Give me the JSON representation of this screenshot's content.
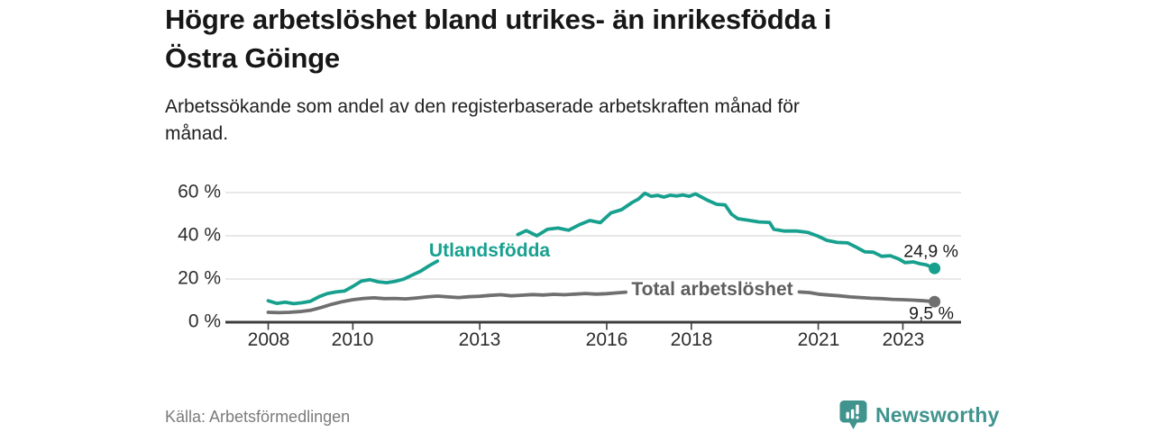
{
  "header": {
    "title_line1": "Högre arbetslöshet bland utrikes- än inrikesfödda i",
    "title_line2": "Östra Göinge",
    "subtitle_line1": "Arbetssökande som andel av den registerbaserade arbetskraften månad för",
    "subtitle_line2": "månad."
  },
  "footer": {
    "source": "Källa: Arbetsförmedlingen",
    "brand": "Newsworthy"
  },
  "colors": {
    "teal": "#18a08f",
    "gray": "#6f6f6f",
    "gray_label": "#5e5e5e",
    "grid": "#d9d9d9",
    "axis": "#3d3d3d",
    "brand_teal": "#40948d",
    "value_label": "#1a1a1a",
    "source_text": "#7b7b7b"
  },
  "chart_data": {
    "type": "line",
    "title": "Högre arbetslöshet bland utrikes- än inrikesfödda i Östra Göinge",
    "subtitle": "Arbetssökande som andel av den registerbaserade arbetskraften månad för månad.",
    "source": "Källa: Arbetsförmedlingen",
    "unit": "%",
    "x_range": [
      2007,
      2024.4
    ],
    "y_range": [
      0,
      65
    ],
    "grid": "horizontal",
    "legend_position": "inline-labels",
    "yticks": [
      {
        "value": 60,
        "label": "60 %"
      },
      {
        "value": 40,
        "label": "40 %"
      },
      {
        "value": 20,
        "label": "20 %"
      },
      {
        "value": 0,
        "label": "0 %"
      }
    ],
    "xticks": [
      {
        "value": 2008,
        "label": "2008"
      },
      {
        "value": 2010,
        "label": "2010"
      },
      {
        "value": 2013,
        "label": "2013"
      },
      {
        "value": 2016,
        "label": "2016"
      },
      {
        "value": 2018,
        "label": "2018"
      },
      {
        "value": 2021,
        "label": "2021"
      },
      {
        "value": 2023,
        "label": "2023"
      }
    ],
    "series": [
      {
        "name": "Utlandsfödda",
        "color": "#18a08f",
        "label_color": "#18a08f",
        "end_label": "24,9 %",
        "end_value": 24.9,
        "segments": [
          [
            [
              2008.0,
              9.9
            ],
            [
              2008.2,
              8.7
            ],
            [
              2008.4,
              9.3
            ],
            [
              2008.6,
              8.6
            ],
            [
              2008.8,
              9.0
            ],
            [
              2009.0,
              9.7
            ],
            [
              2009.2,
              11.8
            ],
            [
              2009.4,
              13.3
            ],
            [
              2009.6,
              14.0
            ],
            [
              2009.8,
              14.4
            ],
            [
              2010.0,
              16.6
            ],
            [
              2010.2,
              19.0
            ],
            [
              2010.4,
              19.7
            ],
            [
              2010.6,
              18.7
            ],
            [
              2010.8,
              18.3
            ],
            [
              2011.0,
              18.9
            ],
            [
              2011.2,
              19.9
            ],
            [
              2011.4,
              21.8
            ],
            [
              2011.6,
              23.6
            ],
            [
              2011.8,
              26.1
            ],
            [
              2012.0,
              28.3
            ]
          ],
          [
            [
              2013.9,
              40.6
            ],
            [
              2014.1,
              42.4
            ],
            [
              2014.35,
              40.0
            ],
            [
              2014.6,
              43.0
            ],
            [
              2014.85,
              43.6
            ],
            [
              2015.1,
              42.6
            ],
            [
              2015.35,
              45.1
            ],
            [
              2015.6,
              47.1
            ],
            [
              2015.85,
              46.1
            ],
            [
              2016.1,
              50.6
            ],
            [
              2016.35,
              52.1
            ],
            [
              2016.6,
              55.4
            ],
            [
              2016.75,
              57.0
            ],
            [
              2016.9,
              59.7
            ],
            [
              2017.05,
              58.3
            ],
            [
              2017.2,
              58.7
            ],
            [
              2017.35,
              57.9
            ],
            [
              2017.5,
              58.8
            ],
            [
              2017.65,
              58.4
            ],
            [
              2017.8,
              58.9
            ],
            [
              2017.95,
              58.3
            ],
            [
              2018.1,
              59.4
            ],
            [
              2018.4,
              56.3
            ],
            [
              2018.6,
              54.6
            ],
            [
              2018.8,
              54.3
            ],
            [
              2018.95,
              50.0
            ],
            [
              2019.1,
              47.9
            ],
            [
              2019.35,
              47.2
            ],
            [
              2019.6,
              46.4
            ],
            [
              2019.85,
              46.2
            ],
            [
              2019.95,
              43.0
            ],
            [
              2020.2,
              42.2
            ],
            [
              2020.5,
              42.2
            ],
            [
              2020.75,
              41.6
            ],
            [
              2021.0,
              39.8
            ],
            [
              2021.2,
              37.9
            ],
            [
              2021.45,
              36.9
            ],
            [
              2021.7,
              36.7
            ],
            [
              2021.9,
              34.7
            ],
            [
              2022.1,
              32.6
            ],
            [
              2022.3,
              32.4
            ],
            [
              2022.5,
              30.5
            ],
            [
              2022.7,
              30.8
            ],
            [
              2022.9,
              29.3
            ],
            [
              2023.05,
              27.6
            ],
            [
              2023.25,
              27.9
            ],
            [
              2023.4,
              27.1
            ],
            [
              2023.55,
              26.6
            ],
            [
              2023.75,
              24.9
            ]
          ]
        ]
      },
      {
        "name": "Total arbetslöshet",
        "color": "#6f6f6f",
        "label_color": "#5e5e5e",
        "end_label": "9,5 %",
        "end_value": 9.5,
        "segments": [
          [
            [
              2008.0,
              4.6
            ],
            [
              2008.25,
              4.4
            ],
            [
              2008.5,
              4.6
            ],
            [
              2008.75,
              4.9
            ],
            [
              2009.0,
              5.5
            ],
            [
              2009.25,
              6.8
            ],
            [
              2009.5,
              8.3
            ],
            [
              2009.75,
              9.5
            ],
            [
              2010.0,
              10.4
            ],
            [
              2010.25,
              11.0
            ],
            [
              2010.5,
              11.3
            ],
            [
              2010.75,
              10.9
            ],
            [
              2011.0,
              11.0
            ],
            [
              2011.25,
              10.8
            ],
            [
              2011.5,
              11.2
            ],
            [
              2011.75,
              11.7
            ],
            [
              2012.0,
              12.1
            ],
            [
              2012.25,
              11.7
            ],
            [
              2012.5,
              11.4
            ],
            [
              2012.75,
              11.8
            ],
            [
              2013.0,
              12.0
            ],
            [
              2013.25,
              12.4
            ],
            [
              2013.5,
              12.7
            ],
            [
              2013.75,
              12.2
            ],
            [
              2014.0,
              12.5
            ],
            [
              2014.25,
              12.8
            ],
            [
              2014.5,
              12.6
            ],
            [
              2014.75,
              12.9
            ],
            [
              2015.0,
              12.7
            ],
            [
              2015.25,
              13.0
            ],
            [
              2015.5,
              13.3
            ],
            [
              2015.75,
              13.0
            ],
            [
              2016.0,
              13.2
            ],
            [
              2016.25,
              13.6
            ],
            [
              2016.45,
              13.9
            ]
          ],
          [
            [
              2020.55,
              14.0
            ],
            [
              2020.8,
              13.7
            ],
            [
              2021.0,
              13.0
            ],
            [
              2021.25,
              12.6
            ],
            [
              2021.5,
              12.2
            ],
            [
              2021.75,
              11.7
            ],
            [
              2022.0,
              11.4
            ],
            [
              2022.25,
              11.1
            ],
            [
              2022.5,
              10.9
            ],
            [
              2022.75,
              10.6
            ],
            [
              2023.0,
              10.4
            ],
            [
              2023.25,
              10.2
            ],
            [
              2023.5,
              9.9
            ],
            [
              2023.75,
              9.5
            ]
          ]
        ]
      }
    ]
  }
}
